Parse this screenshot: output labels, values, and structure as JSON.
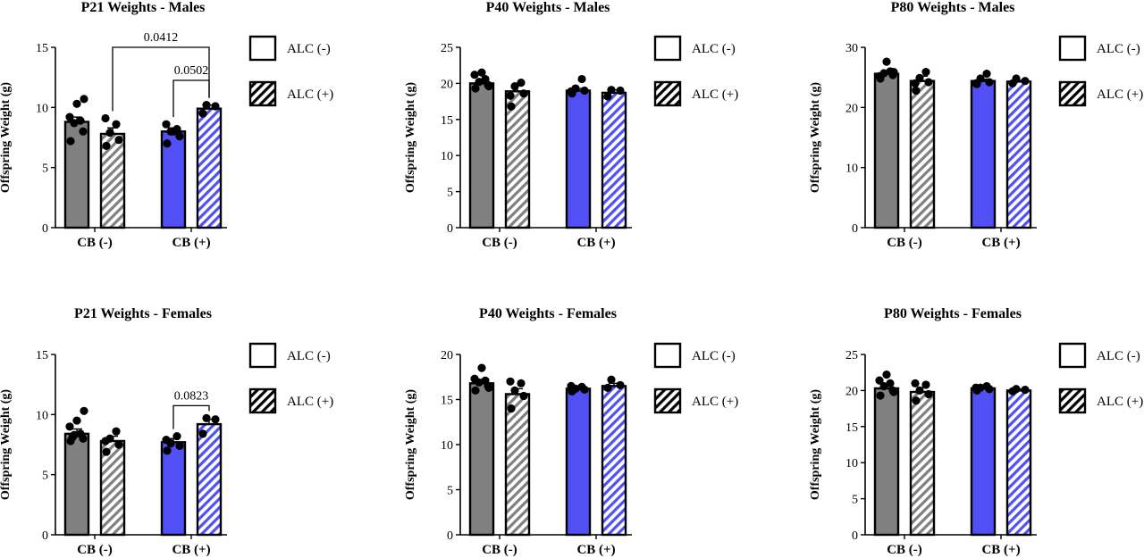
{
  "colors": {
    "alc_neg_cb_neg": "#808080",
    "alc_neg_cb_pos": "#5050f5",
    "hatch_grey": "#808080",
    "hatch_blue": "#5050f5",
    "stroke": "#000000"
  },
  "legend": {
    "items": [
      {
        "label": "ALC (-)",
        "pattern": "solid-white"
      },
      {
        "label": "ALC (+)",
        "pattern": "hatch-black"
      }
    ]
  },
  "chart_data": [
    {
      "type": "bar",
      "title": "P21 Weights - Males",
      "ylabel": "Offspring Weight (g)",
      "ylim": [
        0,
        15
      ],
      "yticks": [
        0,
        5,
        10,
        15
      ],
      "categories": [
        "CB (-)",
        "CB (+)"
      ],
      "series": [
        {
          "name": "ALC (-)",
          "values": [
            8.8,
            8.0
          ],
          "errors": [
            0.4,
            0.3
          ],
          "points": [
            [
              7.2,
              8.0,
              8.7,
              8.9,
              9.2,
              10.3,
              10.7
            ],
            [
              7.0,
              7.6,
              8.0,
              8.2,
              8.6,
              8.0
            ]
          ]
        },
        {
          "name": "ALC (+)",
          "values": [
            7.8,
            9.9
          ],
          "errors": [
            0.5,
            0.3
          ],
          "points": [
            [
              6.8,
              7.3,
              7.9,
              8.6,
              9.1
            ],
            [
              9.5,
              10.1,
              10.2
            ]
          ]
        }
      ],
      "annotations": [
        {
          "text": "0.0412",
          "from": [
            0,
            1
          ],
          "to": [
            1,
            1
          ]
        },
        {
          "text": "0.0502",
          "from": [
            1,
            0
          ],
          "to": [
            1,
            1
          ]
        }
      ]
    },
    {
      "type": "bar",
      "title": "P40 Weights - Males",
      "ylabel": "Offspring Weight (g)",
      "ylim": [
        0,
        25
      ],
      "yticks": [
        0,
        5,
        10,
        15,
        20,
        25
      ],
      "categories": [
        "CB (-)",
        "CB (+)"
      ],
      "series": [
        {
          "name": "ALC (-)",
          "values": [
            20.0,
            19.0
          ],
          "errors": [
            0.4,
            0.3
          ],
          "points": [
            [
              19.3,
              19.8,
              20.2,
              20.6,
              21.2,
              21.5,
              19.6
            ],
            [
              18.6,
              19.0,
              19.3,
              20.6,
              18.9
            ]
          ]
        },
        {
          "name": "ALC (+)",
          "values": [
            18.9,
            18.7
          ],
          "errors": [
            0.8,
            0.4
          ],
          "points": [
            [
              16.8,
              18.6,
              19.6,
              20.1,
              18.3
            ],
            [
              18.2,
              19.0,
              19.1
            ]
          ]
        }
      ],
      "annotations": []
    },
    {
      "type": "bar",
      "title": "P80 Weights - Males",
      "ylabel": "Offspring Weight (g)",
      "ylim": [
        0,
        30
      ],
      "yticks": [
        0,
        10,
        20,
        30
      ],
      "categories": [
        "CB (-)",
        "CB (+)"
      ],
      "series": [
        {
          "name": "ALC (-)",
          "values": [
            25.6,
            24.4
          ],
          "errors": [
            0.4,
            0.3
          ],
          "points": [
            [
              24.8,
              25.4,
              25.7,
              26.0,
              25.2,
              27.6,
              25.9
            ],
            [
              23.9,
              24.2,
              24.8,
              25.6,
              24.0
            ]
          ]
        },
        {
          "name": "ALC (+)",
          "values": [
            24.4,
            24.3
          ],
          "errors": [
            0.8,
            0.2
          ],
          "points": [
            [
              22.8,
              24.2,
              24.9,
              25.9,
              24.0
            ],
            [
              24.0,
              24.4,
              24.8
            ]
          ]
        }
      ],
      "annotations": []
    },
    {
      "type": "bar",
      "title": "P21 Weights - Females",
      "ylabel": "Offspring Weight (g)",
      "ylim": [
        0,
        15
      ],
      "yticks": [
        0,
        5,
        10,
        15
      ],
      "categories": [
        "CB (-)",
        "CB (+)"
      ],
      "series": [
        {
          "name": "ALC (-)",
          "values": [
            8.4,
            7.7
          ],
          "errors": [
            0.4,
            0.3
          ],
          "points": [
            [
              7.8,
              8.0,
              8.3,
              8.4,
              9.0,
              9.5,
              10.3,
              8.1
            ],
            [
              7.0,
              7.4,
              7.6,
              8.2,
              7.9
            ]
          ]
        },
        {
          "name": "ALC (+)",
          "values": [
            7.8,
            9.2
          ],
          "errors": [
            0.4,
            0.4
          ],
          "points": [
            [
              6.9,
              7.5,
              8.0,
              8.6,
              7.8
            ],
            [
              8.4,
              9.6,
              9.7
            ]
          ]
        }
      ],
      "annotations": [
        {
          "text": "0.0823",
          "from": [
            1,
            0
          ],
          "to": [
            1,
            1
          ]
        }
      ]
    },
    {
      "type": "bar",
      "title": "P40 Weights - Females",
      "ylabel": "Offspring Weight (g)",
      "ylim": [
        0,
        20
      ],
      "yticks": [
        0,
        5,
        10,
        15,
        20
      ],
      "categories": [
        "CB (-)",
        "CB (+)"
      ],
      "series": [
        {
          "name": "ALC (-)",
          "values": [
            16.8,
            16.2
          ],
          "errors": [
            0.4,
            0.2
          ],
          "points": [
            [
              16.0,
              16.5,
              16.9,
              17.1,
              17.3,
              18.5,
              16.3
            ],
            [
              15.9,
              16.1,
              16.2,
              16.4,
              16.5
            ]
          ]
        },
        {
          "name": "ALC (+)",
          "values": [
            15.6,
            16.5
          ],
          "errors": [
            0.6,
            0.3
          ],
          "points": [
            [
              14.0,
              15.4,
              16.0,
              16.8,
              17.0
            ],
            [
              16.3,
              16.6,
              17.2
            ]
          ]
        }
      ],
      "annotations": []
    },
    {
      "type": "bar",
      "title": "P80 Weights - Females",
      "ylabel": "Offspring Weight (g)",
      "ylim": [
        0,
        25
      ],
      "yticks": [
        0,
        5,
        10,
        15,
        20,
        25
      ],
      "categories": [
        "CB (-)",
        "CB (+)"
      ],
      "series": [
        {
          "name": "ALC (-)",
          "values": [
            20.3,
            20.3
          ],
          "errors": [
            0.5,
            0.2
          ],
          "points": [
            [
              19.3,
              20.0,
              20.6,
              21.0,
              21.4,
              22.2,
              19.8
            ],
            [
              20.0,
              20.2,
              20.4,
              20.6,
              20.4
            ]
          ]
        },
        {
          "name": "ALC (+)",
          "values": [
            19.8,
            20.0
          ],
          "errors": [
            0.6,
            0.2
          ],
          "points": [
            [
              18.6,
              19.5,
              20.0,
              20.8,
              21.0
            ],
            [
              19.9,
              20.1,
              20.2
            ]
          ]
        }
      ],
      "annotations": []
    }
  ]
}
